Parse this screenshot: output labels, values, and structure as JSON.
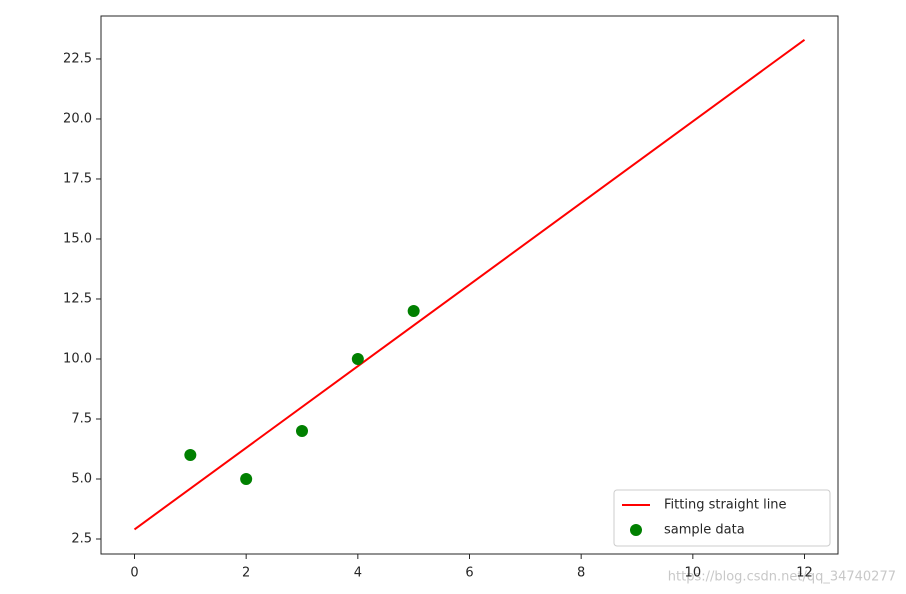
{
  "chart_data": {
    "type": "line",
    "xlim": [
      -0.6,
      12.6
    ],
    "ylim": [
      1.875,
      24.29
    ],
    "xticks": [
      0,
      2,
      4,
      6,
      8,
      10,
      12
    ],
    "yticks": [
      2.5,
      {
        "value": 5,
        "label": "5.0"
      },
      7.5,
      {
        "value": 10,
        "label": "10.0"
      },
      12.5,
      {
        "value": 15,
        "label": "15.0"
      },
      17.5,
      {
        "value": 20,
        "label": "20.0"
      },
      22.5
    ],
    "legend": "lower right",
    "series": [
      {
        "name": "Fitting straight line",
        "type": "line",
        "color": "#ff0000",
        "x": [
          0,
          12
        ],
        "values": [
          2.9,
          23.3
        ]
      },
      {
        "name": "sample data",
        "type": "scatter",
        "color": "#008000",
        "x": [
          1,
          2,
          3,
          4,
          5
        ],
        "values": [
          6,
          5,
          7,
          10,
          12
        ]
      }
    ]
  },
  "watermark": "https://blog.csdn.net/qq_34740277"
}
